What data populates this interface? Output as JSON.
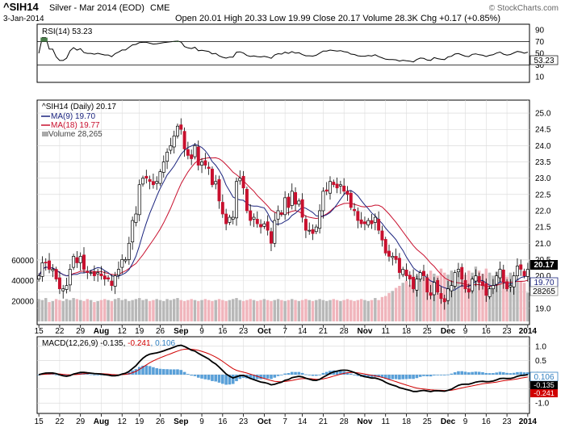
{
  "header": {
    "symbol": "^SIH14",
    "description": "Silver - Mar 2014 (EOD)",
    "exchange": "CME",
    "date": "3-Jan-2014",
    "ohlc_text": "Open 20.01  High 20.33  Low 19.99  Close 20.17  Volume 28.3K  Chg +0.17 (+0.85%)",
    "copyright": "© StockCharts.com"
  },
  "colors": {
    "up": "#ffffff",
    "down": "#c8102e",
    "ma9": "#1a237e",
    "ma18": "#c8102e",
    "volume": "#b8b8b8",
    "volume_down": "#f0b5bc",
    "macd_line": "#000000",
    "signal_line": "#d00000",
    "histogram": "#5aa0d8",
    "rsi_fill_over": "#4a7d4a",
    "rsi_fill_under": "#c84060"
  },
  "rsi": {
    "label": "RSI(14) 53.23",
    "current": 53.23,
    "current_text": "53.23",
    "ticks": [
      "90",
      "70",
      "50",
      "30",
      "10"
    ],
    "levels": [
      70,
      30
    ]
  },
  "price_panel": {
    "label": "^SIH14 (Daily) 20.17",
    "ma9_label": "MA(9) 19.70",
    "ma18_label": "MA(18) 19.77",
    "volume_label": "Volume 28,265",
    "ticks": [
      "25.0",
      "24.5",
      "24.0",
      "23.5",
      "23.0",
      "22.5",
      "22.0",
      "21.5",
      "21.0",
      "20.5",
      "20.0",
      "19.5",
      "19.0"
    ],
    "volume_ticks": [
      "60000",
      "40000",
      "20000"
    ],
    "last_price_text": "20.17",
    "ma9_text": "19.70",
    "ma18_text": "19.77",
    "last_volume_text": "28265"
  },
  "macd": {
    "label_prefix": "MACD(12,26,9) -0.135, ",
    "signal_text": "-0.241",
    "hist_text": ", 0.106",
    "ticks": [
      "1.0",
      "0.5",
      "0.0",
      "-0.5",
      "-1.0"
    ],
    "current_hist": "0.106",
    "current_macd": "-0.135",
    "current_signal": "-0.241"
  },
  "x_axis": {
    "labels": [
      {
        "t": "15",
        "bold": false
      },
      {
        "t": "22",
        "bold": false
      },
      {
        "t": "29",
        "bold": false
      },
      {
        "t": "Aug",
        "bold": true
      },
      {
        "t": "12",
        "bold": false
      },
      {
        "t": "19",
        "bold": false
      },
      {
        "t": "26",
        "bold": false
      },
      {
        "t": "Sep",
        "bold": true
      },
      {
        "t": "9",
        "bold": false
      },
      {
        "t": "16",
        "bold": false
      },
      {
        "t": "23",
        "bold": false
      },
      {
        "t": "Oct",
        "bold": true
      },
      {
        "t": "7",
        "bold": false
      },
      {
        "t": "14",
        "bold": false
      },
      {
        "t": "21",
        "bold": false
      },
      {
        "t": "28",
        "bold": false
      },
      {
        "t": "Nov",
        "bold": true
      },
      {
        "t": "11",
        "bold": false
      },
      {
        "t": "18",
        "bold": false
      },
      {
        "t": "25",
        "bold": false
      },
      {
        "t": "Dec",
        "bold": true
      },
      {
        "t": "9",
        "bold": false
      },
      {
        "t": "16",
        "bold": false
      },
      {
        "t": "23",
        "bold": false
      },
      {
        "t": "2014",
        "bold": true
      }
    ]
  },
  "chart_data": {
    "type": "candlestick",
    "title": "^SIH14 Silver - Mar 2014 (EOD) CME",
    "ylim": [
      18.6,
      25.3
    ],
    "closes": [
      20.0,
      20.4,
      20.4,
      20.2,
      20.2,
      19.9,
      19.6,
      19.6,
      19.7,
      20.2,
      20.6,
      20.4,
      20.6,
      20.2,
      20.1,
      20.1,
      20.0,
      20.1,
      20.0,
      19.9,
      19.9,
      19.7,
      20.0,
      20.2,
      20.5,
      20.5,
      21.0,
      21.7,
      21.9,
      22.8,
      23.0,
      23.0,
      22.9,
      22.8,
      22.9,
      23.2,
      23.5,
      23.8,
      24.0,
      24.3,
      24.6,
      24.5,
      23.9,
      23.7,
      23.6,
      24.0,
      23.4,
      23.5,
      23.4,
      23.3,
      22.8,
      22.9,
      22.3,
      21.9,
      21.6,
      21.8,
      21.8,
      22.9,
      23.0,
      22.7,
      22.0,
      21.7,
      21.8,
      21.6,
      21.5,
      21.6,
      21.4,
      21.0,
      21.7,
      22.0,
      21.9,
      22.4,
      22.1,
      22.6,
      22.2,
      22.3,
      21.8,
      21.4,
      21.4,
      21.3,
      21.5,
      22.0,
      22.6,
      22.6,
      22.9,
      22.8,
      22.7,
      22.8,
      22.6,
      22.5,
      22.1,
      22.0,
      21.7,
      21.6,
      21.6,
      21.7,
      21.6,
      21.8,
      21.4,
      21.1,
      20.7,
      20.6,
      20.6,
      20.5,
      20.1,
      20.2,
      20.0,
      19.9,
      19.6,
      19.9,
      20.1,
      20.0,
      19.5,
      19.4,
      19.8,
      19.5,
      19.3,
      19.2,
      19.6,
      19.7,
      20.1,
      20.2,
      19.9,
      19.6,
      19.5,
      19.9,
      20.0,
      19.8,
      19.7,
      19.4,
      19.6,
      19.7,
      20.0,
      20.2,
      19.8,
      19.6,
      19.7,
      20.0,
      20.3,
      20.2,
      20.0,
      20.2
    ],
    "volume": [
      22000,
      21000,
      23000,
      19000,
      20000,
      22000,
      21000,
      20000,
      22000,
      21000,
      23000,
      22000,
      21000,
      20000,
      22000,
      21000,
      19000,
      20000,
      21000,
      22000,
      21000,
      20000,
      22000,
      23000,
      21000,
      22000,
      20000,
      21000,
      22000,
      23000,
      21000,
      22000,
      20000,
      21000,
      22000,
      21000,
      20000,
      22000,
      21000,
      22000,
      23000,
      21000,
      20000,
      21000,
      22000,
      21000,
      20000,
      21000,
      22000,
      21000,
      20000,
      21000,
      22000,
      21000,
      20000,
      21000,
      22000,
      23000,
      21000,
      20000,
      21000,
      22000,
      21000,
      20000,
      21000,
      22000,
      21000,
      20000,
      21000,
      22000,
      21000,
      20000,
      21000,
      22000,
      21000,
      20000,
      21000,
      22000,
      21000,
      20000,
      21000,
      22000,
      21000,
      20000,
      21000,
      22000,
      21000,
      20000,
      21000,
      22000,
      21000,
      20000,
      21000,
      22000,
      21000,
      20000,
      21000,
      23000,
      21000,
      24000,
      25000,
      28000,
      30000,
      33000,
      35000,
      38000,
      40000,
      36000,
      42000,
      45000,
      48000,
      44000,
      46000,
      50000,
      47000,
      45000,
      52000,
      48000,
      46000,
      50000,
      44000,
      48000,
      52000,
      46000,
      50000,
      48000,
      54000,
      50000,
      47000,
      52000,
      48000,
      45000,
      49000,
      52000,
      47000,
      44000,
      48000,
      45000,
      42000,
      40000,
      38000,
      28265
    ]
  }
}
